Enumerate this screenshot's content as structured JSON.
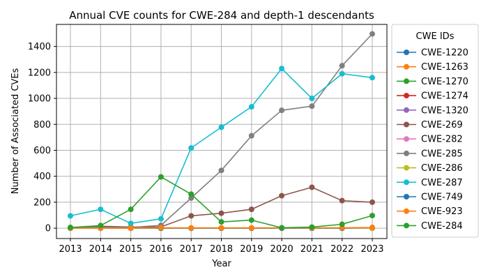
{
  "chart_data": {
    "type": "line",
    "title": "Annual CVE counts for CWE-284 and depth-1 descendants",
    "xlabel": "Year",
    "ylabel": "Number of Associated CVEs",
    "x": [
      "2013",
      "2014",
      "2015",
      "2016",
      "2017",
      "2018",
      "2019",
      "2020",
      "2021",
      "2022",
      "2023"
    ],
    "ylim": [
      -80,
      1570
    ],
    "yticks": [
      0,
      200,
      400,
      600,
      800,
      1000,
      1200,
      1400
    ],
    "grid": true,
    "legend_title": "CWE IDs",
    "legend_position": "outside-right",
    "series": [
      {
        "name": "CWE-1220",
        "color": "#1f77b4",
        "values": [
          0,
          0,
          0,
          0,
          0,
          0,
          0,
          0,
          0,
          0,
          0
        ]
      },
      {
        "name": "CWE-1263",
        "color": "#ff7f0e",
        "values": [
          0,
          0,
          0,
          0,
          0,
          0,
          0,
          0,
          0,
          0,
          0
        ]
      },
      {
        "name": "CWE-1270",
        "color": "#2ca02c",
        "values": [
          0,
          0,
          0,
          0,
          0,
          0,
          0,
          0,
          0,
          0,
          0
        ]
      },
      {
        "name": "CWE-1274",
        "color": "#d62728",
        "values": [
          0,
          0,
          0,
          0,
          0,
          0,
          0,
          0,
          0,
          0,
          0
        ]
      },
      {
        "name": "CWE-1320",
        "color": "#9467bd",
        "values": [
          0,
          0,
          0,
          0,
          0,
          0,
          0,
          0,
          0,
          0,
          0
        ]
      },
      {
        "name": "CWE-269",
        "color": "#8c564b",
        "values": [
          5,
          15,
          8,
          10,
          95,
          115,
          145,
          250,
          315,
          212,
          200
        ]
      },
      {
        "name": "CWE-282",
        "color": "#e377c2",
        "values": [
          0,
          0,
          0,
          0,
          0,
          0,
          0,
          0,
          0,
          0,
          0
        ]
      },
      {
        "name": "CWE-285",
        "color": "#7f7f7f",
        "values": [
          2,
          8,
          5,
          22,
          232,
          445,
          712,
          908,
          940,
          1252,
          1497
        ]
      },
      {
        "name": "CWE-286",
        "color": "#bcbd22",
        "values": [
          0,
          0,
          0,
          0,
          0,
          0,
          0,
          0,
          0,
          0,
          0
        ]
      },
      {
        "name": "CWE-287",
        "color": "#17becf",
        "values": [
          95,
          145,
          37,
          72,
          618,
          778,
          935,
          1230,
          1000,
          1190,
          1160
        ]
      },
      {
        "name": "CWE-749",
        "color": "#1f77b4",
        "values": [
          0,
          0,
          0,
          0,
          0,
          0,
          0,
          0,
          0,
          0,
          5
        ]
      },
      {
        "name": "CWE-923",
        "color": "#ff7f0e",
        "values": [
          0,
          0,
          0,
          3,
          2,
          2,
          2,
          2,
          2,
          3,
          5
        ]
      },
      {
        "name": "CWE-284",
        "color": "#2ca02c",
        "values": [
          5,
          20,
          145,
          395,
          262,
          48,
          62,
          3,
          8,
          30,
          97
        ]
      }
    ]
  }
}
